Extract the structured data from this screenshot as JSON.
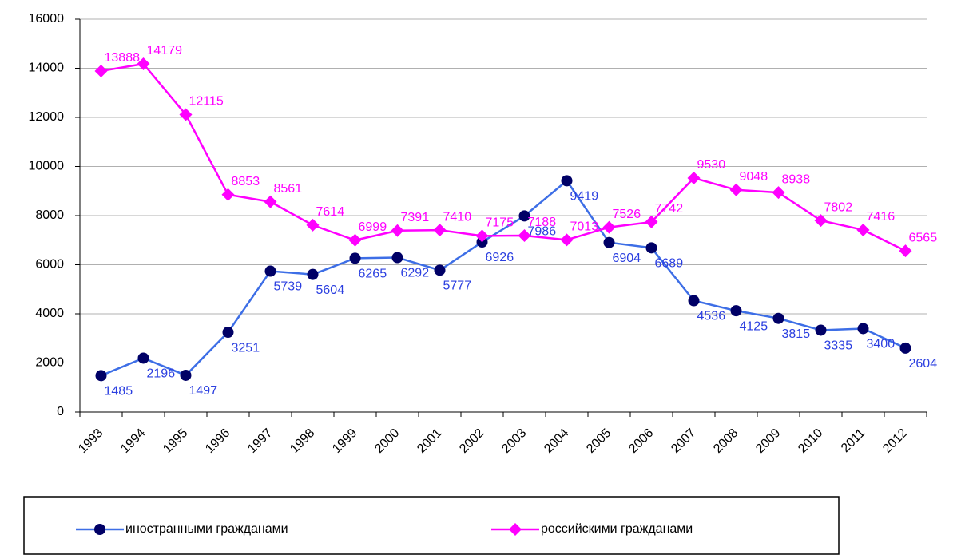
{
  "chart_data": {
    "type": "line",
    "categories": [
      "1993",
      "1994",
      "1995",
      "1996",
      "1997",
      "1998",
      "1999",
      "2000",
      "2001",
      "2002",
      "2003",
      "2004",
      "2005",
      "2006",
      "2007",
      "2008",
      "2009",
      "2010",
      "2011",
      "2012"
    ],
    "series": [
      {
        "name": "иностранными гражданами",
        "color": "#3d6ee6",
        "marker_color": "#000066",
        "marker": "circle",
        "label_color": "#2b3fe0",
        "values": [
          1485,
          2196,
          1497,
          3251,
          5739,
          5604,
          6265,
          6292,
          5777,
          6926,
          7986,
          9419,
          6904,
          6689,
          4536,
          4125,
          3815,
          3335,
          3400,
          2604
        ]
      },
      {
        "name": "российскими гражданами",
        "color": "#ff00ff",
        "marker_color": "#ff00ff",
        "marker": "diamond",
        "label_color": "#ff00ff",
        "values": [
          13888,
          14179,
          12115,
          8853,
          8561,
          7614,
          6999,
          7391,
          7410,
          7175,
          7188,
          7013,
          7526,
          7742,
          9530,
          9048,
          8938,
          7802,
          7416,
          6565
        ]
      }
    ],
    "ylim": [
      0,
      16000
    ],
    "yticks": [
      0,
      2000,
      4000,
      6000,
      8000,
      10000,
      12000,
      14000,
      16000
    ],
    "grid": true
  }
}
